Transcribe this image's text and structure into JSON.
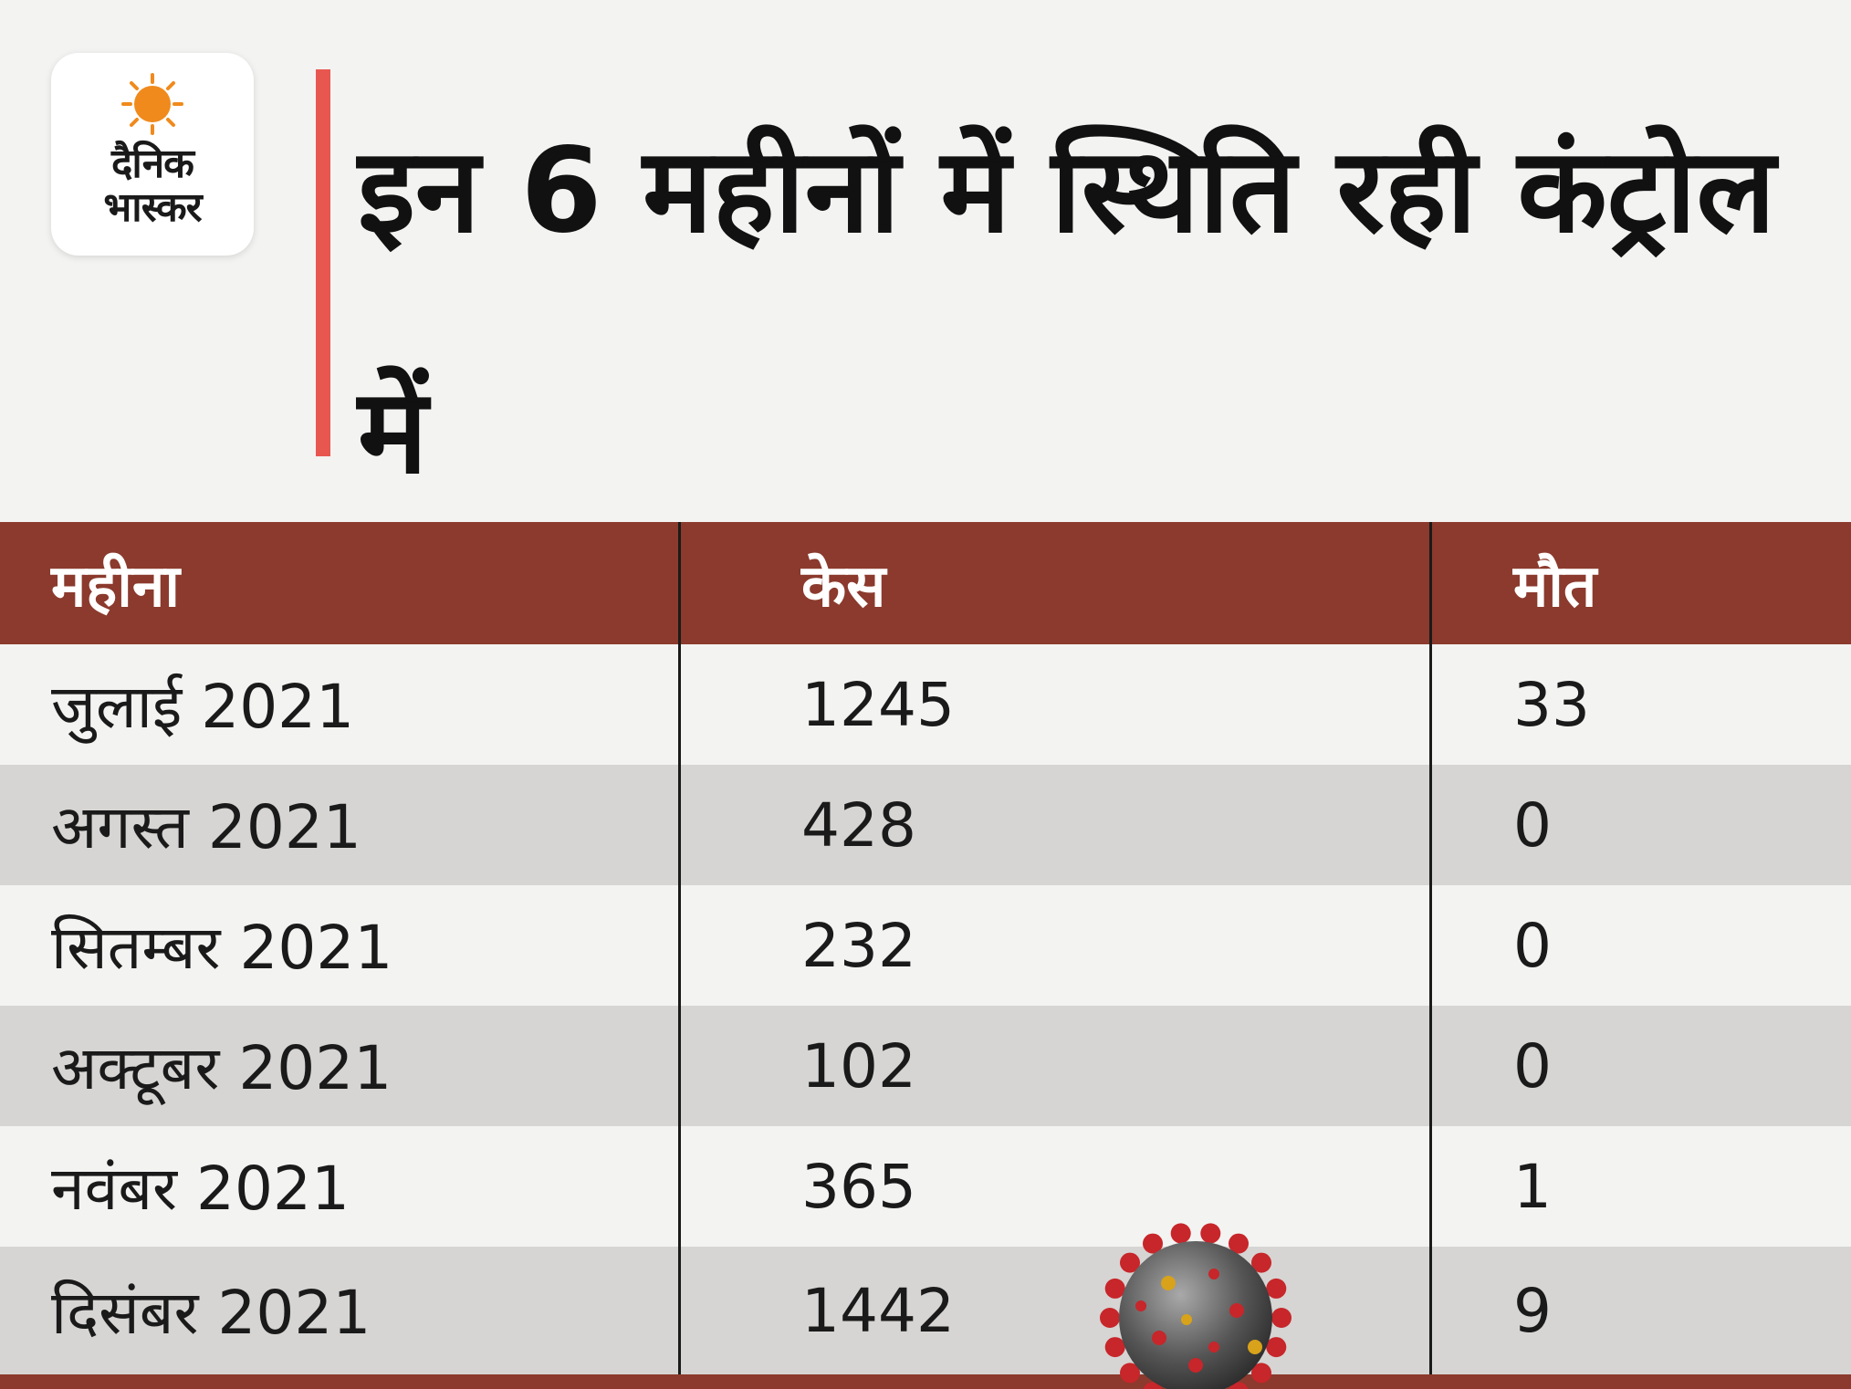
{
  "logo": {
    "line1": "दैनिक",
    "line2": "भास्कर",
    "sun_color": "#f08a1c"
  },
  "title": "इन 6 महीनों में स्थिति रही कंट्रोल में",
  "colors": {
    "header_bg": "#8b3a2d",
    "accent": "#e8574f",
    "row_alt": "#d6d5d3",
    "background": "#f3f3f2"
  },
  "table": {
    "headers": [
      "महीना",
      "केस",
      "मौत"
    ],
    "rows": [
      {
        "month": "जुलाई 2021",
        "cases": "1245",
        "deaths": "33"
      },
      {
        "month": "अगस्त 2021",
        "cases": "428",
        "deaths": "0"
      },
      {
        "month": "सितम्बर 2021",
        "cases": "232",
        "deaths": "0"
      },
      {
        "month": "अक्टूबर 2021",
        "cases": "102",
        "deaths": "0"
      },
      {
        "month": "नवंबर 2021",
        "cases": "365",
        "deaths": "1"
      },
      {
        "month": "दिसंबर 2021",
        "cases": "1442",
        "deaths": "9"
      }
    ]
  },
  "decoration": {
    "icon": "virus-icon"
  },
  "chart_data": {
    "type": "table",
    "title": "इन 6 महीनों में स्थिति रही कंट्रोल में",
    "columns": [
      "महीना",
      "केस",
      "मौत"
    ],
    "categories": [
      "जुलाई 2021",
      "अगस्त 2021",
      "सितम्बर 2021",
      "अक्टूबर 2021",
      "नवंबर 2021",
      "दिसंबर 2021"
    ],
    "series": [
      {
        "name": "केस",
        "values": [
          1245,
          428,
          232,
          102,
          365,
          1442
        ]
      },
      {
        "name": "मौत",
        "values": [
          33,
          0,
          0,
          0,
          1,
          9
        ]
      }
    ]
  }
}
